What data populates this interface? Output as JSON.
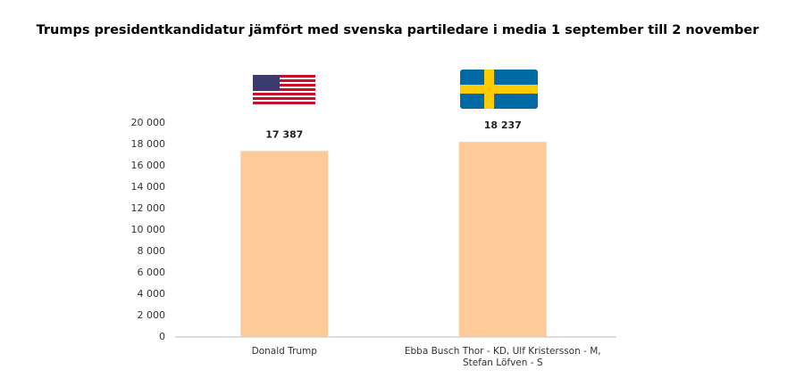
{
  "chart_data": {
    "type": "bar",
    "title": "Trumps presidentkandidatur jämfört med svenska partiledare i media 1 september till 2 november",
    "categories": [
      "Donald Trump",
      "Ebba Busch Thor - KD, Ulf Kristersson - M, Stefan Löfven - S"
    ],
    "values": [
      17387,
      18237
    ],
    "value_labels": [
      "17 387",
      "18 237"
    ],
    "color": "#fdcb9a",
    "ylim": [
      0,
      20000
    ],
    "yticks": [
      0,
      {
        "value": 2000,
        "label": "2 000"
      },
      {
        "value": 4000,
        "label": "4 000"
      },
      {
        "value": 6000,
        "label": "6 000"
      },
      {
        "value": 8000,
        "label": "8 000"
      },
      {
        "value": 10000,
        "label": "10 000"
      },
      {
        "value": 12000,
        "label": "12 000"
      },
      {
        "value": 14000,
        "label": "14 000"
      },
      {
        "value": 16000,
        "label": "16 000"
      },
      {
        "value": 18000,
        "label": "18 000"
      },
      {
        "value": 20000,
        "label": "20 000"
      }
    ],
    "grid": false
  }
}
